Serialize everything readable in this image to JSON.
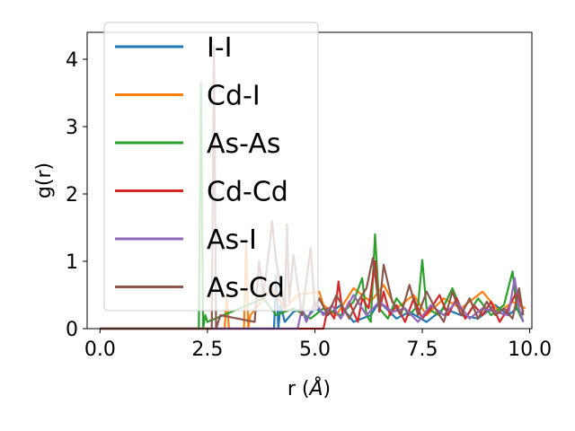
{
  "chart_data": {
    "type": "line",
    "xlabel": "r (",
    "xlabel_unit": "Å",
    "xlabel_close": ")",
    "ylabel": "g(r)",
    "xlim": [
      -0.3,
      10.05
    ],
    "ylim": [
      0,
      4.4
    ],
    "x_ticks": [
      "0.0",
      "2.5",
      "5.0",
      "7.5",
      "10.0"
    ],
    "x_tick_values": [
      0,
      2.5,
      5,
      7.5,
      10
    ],
    "y_ticks": [
      "0",
      "1",
      "2",
      "3",
      "4"
    ],
    "y_tick_values": [
      0,
      1,
      2,
      3,
      4
    ],
    "grid": false,
    "legend_position": "top-left",
    "series": [
      {
        "name": "I-I",
        "color": "#1f77b4",
        "x": [
          0,
          4.05,
          4.1,
          4.15,
          4.2,
          4.3,
          4.5,
          4.7,
          4.8,
          5.0,
          5.3,
          5.6,
          5.9,
          6.3,
          6.5,
          6.9,
          7.2,
          7.6,
          8.0,
          8.4,
          8.8,
          9.2,
          9.5,
          9.7,
          9.85
        ],
        "y": [
          0,
          0,
          0.8,
          0.0,
          0.35,
          0.1,
          0.25,
          0.3,
          0.15,
          0.3,
          0.2,
          0.35,
          0.1,
          0.2,
          0.4,
          0.15,
          0.25,
          0.1,
          0.3,
          0.2,
          0.15,
          0.35,
          0.2,
          0.3,
          0.2
        ]
      },
      {
        "name": "Cd-I",
        "color": "#ff7f0e",
        "x": [
          0,
          2.9,
          2.95,
          3.0,
          3.05,
          3.35,
          3.4,
          3.45,
          3.5,
          4.0,
          4.3,
          4.6,
          5.1,
          5.2,
          5.5,
          5.9,
          6.3,
          6.6,
          6.9,
          7.3,
          7.6,
          8.0,
          8.4,
          8.9,
          9.3,
          9.6,
          9.9
        ],
        "y": [
          0,
          0,
          0.5,
          0,
          0,
          0,
          1.3,
          0,
          0.2,
          0.6,
          0.3,
          0.5,
          0.55,
          0.35,
          0.2,
          0.6,
          0.4,
          0.65,
          0.3,
          0.5,
          0.2,
          0.45,
          0.3,
          0.55,
          0.25,
          0.4,
          0.3
        ]
      },
      {
        "name": "As-As",
        "color": "#2ca02c",
        "x": [
          0,
          2.3,
          2.35,
          2.4,
          2.45,
          2.5,
          3.8,
          4.1,
          4.5,
          4.9,
          5.2,
          5.6,
          5.9,
          6.1,
          6.2,
          6.3,
          6.4,
          6.5,
          6.7,
          6.9,
          7.2,
          7.4,
          7.5,
          7.6,
          7.9,
          8.2,
          8.5,
          8.8,
          9.1,
          9.4,
          9.6,
          9.7,
          9.85
        ],
        "y": [
          0,
          0,
          3.65,
          0,
          0.2,
          0.1,
          0.45,
          0.2,
          0.3,
          0.15,
          0.3,
          0.2,
          0.4,
          0.75,
          0.2,
          0.1,
          1.4,
          0.3,
          0.15,
          0.45,
          0.2,
          0.35,
          1.02,
          0.3,
          0.2,
          0.6,
          0.15,
          0.45,
          0.2,
          0.35,
          0.85,
          0.3,
          0.1
        ]
      },
      {
        "name": "Cd-Cd",
        "color": "#d62728",
        "x": [
          0,
          5.2,
          5.3,
          5.45,
          5.55,
          5.65,
          5.8,
          6.0,
          6.1,
          6.25,
          6.4,
          6.5,
          6.6,
          6.75,
          6.9,
          7.1,
          7.3,
          7.5,
          7.7,
          7.9,
          8.1,
          8.3,
          8.5,
          8.7,
          8.9,
          9.1,
          9.3,
          9.5,
          9.7,
          9.85
        ],
        "y": [
          0,
          0,
          0.3,
          0.15,
          0.7,
          0.2,
          0.4,
          0.1,
          0.45,
          0.3,
          1.0,
          0.25,
          0.55,
          0.2,
          0.35,
          0.1,
          0.45,
          0.15,
          0.3,
          0.5,
          0.2,
          0.45,
          0.15,
          0.35,
          0.2,
          0.4,
          0.1,
          0.3,
          0.55,
          0.25
        ]
      },
      {
        "name": "As-I",
        "color": "#9467bd",
        "x": [
          0,
          4.6,
          4.7,
          4.8,
          5.0,
          5.2,
          5.4,
          5.6,
          5.9,
          6.2,
          6.5,
          6.8,
          7.1,
          7.4,
          7.7,
          8.0,
          8.3,
          8.6,
          8.9,
          9.2,
          9.5,
          9.65,
          9.75,
          9.85
        ],
        "y": [
          0,
          0,
          0.3,
          0.1,
          0.4,
          0.2,
          0.35,
          0.15,
          0.5,
          0.2,
          0.4,
          0.25,
          0.3,
          0.1,
          0.35,
          0.2,
          0.4,
          0.15,
          0.3,
          0.25,
          0.2,
          0.75,
          0.3,
          0.1
        ]
      },
      {
        "name": "As-Cd",
        "color": "#8c564b",
        "x": [
          0,
          2.6,
          2.65,
          2.7,
          2.8,
          3.6,
          3.7,
          3.8,
          3.95,
          4.0,
          4.1,
          4.3,
          4.35,
          4.4,
          4.5,
          4.7,
          4.9,
          5.0,
          5.1,
          5.3,
          5.5,
          5.8,
          6.0,
          6.2,
          6.35,
          6.5,
          6.6,
          6.8,
          7.0,
          7.2,
          7.4,
          7.6,
          7.8,
          8.0,
          8.2,
          8.4,
          8.6,
          8.8,
          9.0,
          9.2,
          9.4,
          9.6,
          9.75,
          9.85
        ],
        "y": [
          0,
          0,
          4.2,
          0,
          0.2,
          0.1,
          1.0,
          0.5,
          1.25,
          1.6,
          1.0,
          0.3,
          1.55,
          0.4,
          1.1,
          0.2,
          1.2,
          0.3,
          0.45,
          0.2,
          0.5,
          0.15,
          0.4,
          0.6,
          1.05,
          0.3,
          0.95,
          0.4,
          0.2,
          0.65,
          0.2,
          0.55,
          0.3,
          0.1,
          0.55,
          0.2,
          0.45,
          0.15,
          0.4,
          0.2,
          0.3,
          0.15,
          0.6,
          0.2
        ]
      }
    ]
  }
}
